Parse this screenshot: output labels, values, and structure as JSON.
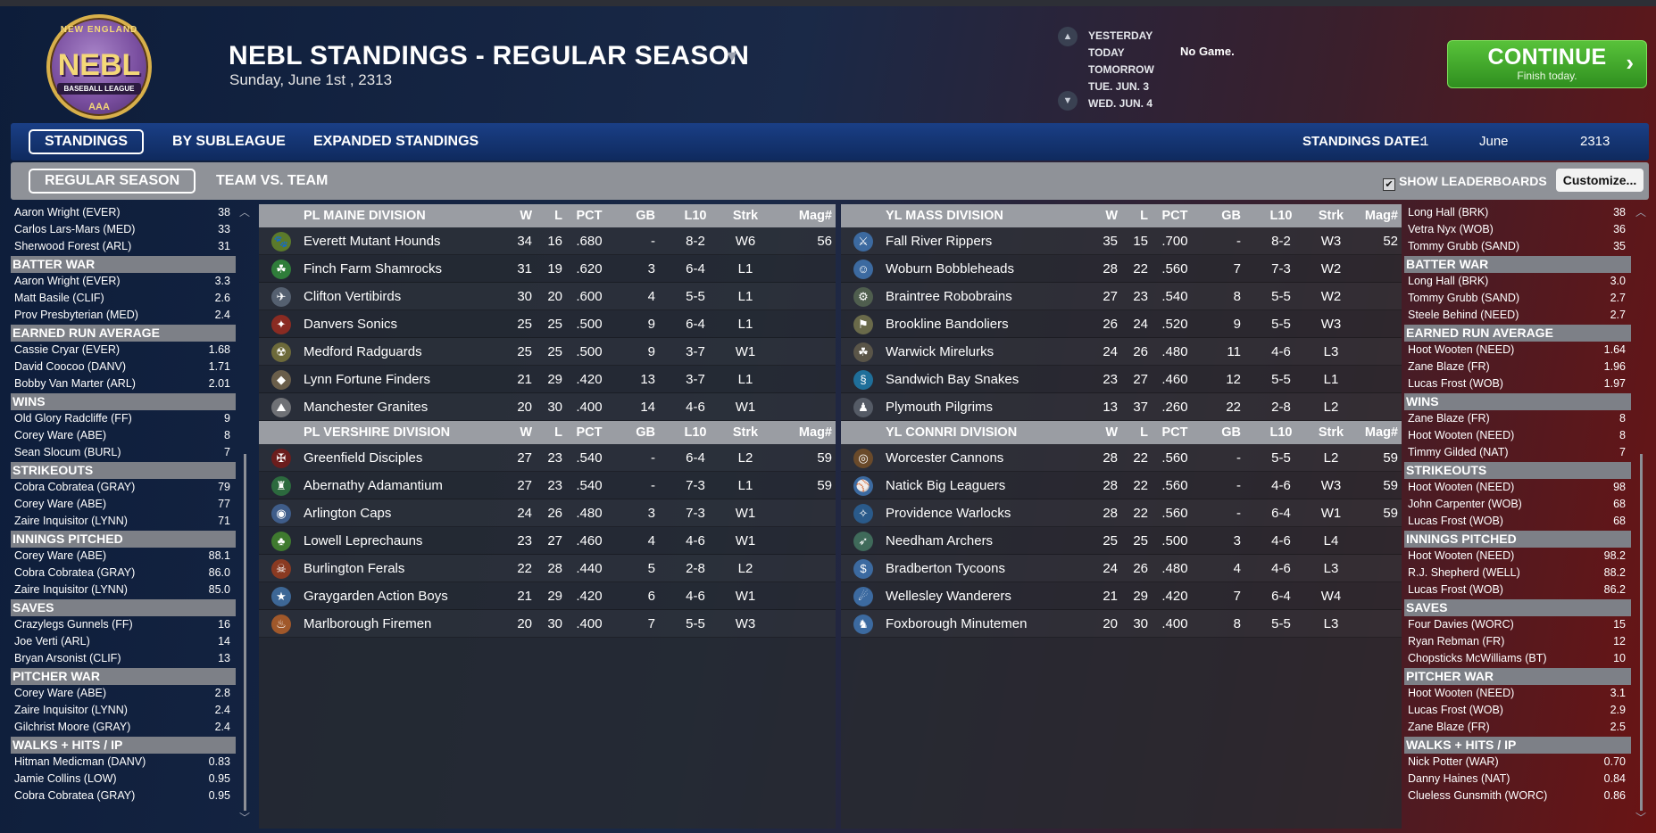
{
  "header": {
    "logo": {
      "top": "NEW ENGLAND",
      "main": "NEBL",
      "sub": "BASEBALL LEAGUE",
      "bottom": "AAA"
    },
    "title": "NEBL STANDINGS - REGULAR SEASON",
    "date": "Sunday, June 1st , 2313",
    "days": [
      "YESTERDAY",
      "TODAY",
      "TOMORROW",
      "TUE. JUN. 3",
      "WED. JUN. 4"
    ],
    "game_status": "No Game.",
    "continue_label": "CONTINUE",
    "continue_sub": "Finish today."
  },
  "tabs": {
    "items": [
      "STANDINGS",
      "BY SUBLEAGUE",
      "EXPANDED STANDINGS"
    ],
    "standings_date_label": "STANDINGS DATE:",
    "standings_day": "1",
    "standings_month": "June",
    "standings_year": "2313"
  },
  "subtabs": {
    "items": [
      "REGULAR SEASON",
      "TEAM VS. TEAM"
    ],
    "show_leaderboards": "SHOW LEADERBOARDS",
    "show_leaderboards_checked": true,
    "customize": "Customize..."
  },
  "left_leaders": [
    {
      "rows": [
        [
          "Aaron Wright (EVER)",
          "38"
        ],
        [
          "Carlos Lars-Mars (MED)",
          "33"
        ],
        [
          "Sherwood Forest (ARL)",
          "31"
        ]
      ]
    },
    {
      "title": "BATTER WAR",
      "rows": [
        [
          "Aaron Wright (EVER)",
          "3.3"
        ],
        [
          "Matt Basile (CLIF)",
          "2.6"
        ],
        [
          "Prov Presbyterian (MED)",
          "2.4"
        ]
      ]
    },
    {
      "title": "EARNED RUN AVERAGE",
      "rows": [
        [
          "Cassie Cryar (EVER)",
          "1.68"
        ],
        [
          "David Coocoo (DANV)",
          "1.71"
        ],
        [
          "Bobby Van Marter (ARL)",
          "2.01"
        ]
      ]
    },
    {
      "title": "WINS",
      "rows": [
        [
          "Old Glory Radcliffe (FF)",
          "9"
        ],
        [
          "Corey Ware (ABE)",
          "8"
        ],
        [
          "Sean Slocum (BURL)",
          "7"
        ]
      ]
    },
    {
      "title": "STRIKEOUTS",
      "rows": [
        [
          "Cobra Cobratea (GRAY)",
          "79"
        ],
        [
          "Corey Ware (ABE)",
          "77"
        ],
        [
          "Zaire Inquisitor (LYNN)",
          "71"
        ]
      ]
    },
    {
      "title": "INNINGS PITCHED",
      "rows": [
        [
          "Corey Ware (ABE)",
          "88.1"
        ],
        [
          "Cobra Cobratea (GRAY)",
          "86.0"
        ],
        [
          "Zaire Inquisitor (LYNN)",
          "85.0"
        ]
      ]
    },
    {
      "title": "SAVES",
      "rows": [
        [
          "Crazylegs Gunnels (FF)",
          "16"
        ],
        [
          "Joe Verti (ARL)",
          "14"
        ],
        [
          "Bryan Arsonist (CLIF)",
          "13"
        ]
      ]
    },
    {
      "title": "PITCHER WAR",
      "rows": [
        [
          "Corey Ware (ABE)",
          "2.8"
        ],
        [
          "Zaire Inquisitor (LYNN)",
          "2.4"
        ],
        [
          "Gilchrist Moore (GRAY)",
          "2.4"
        ]
      ]
    },
    {
      "title": "WALKS + HITS / IP",
      "rows": [
        [
          "Hitman Medicman (DANV)",
          "0.83"
        ],
        [
          "Jamie Collins (LOW)",
          "0.95"
        ],
        [
          "Cobra Cobratea (GRAY)",
          "0.95"
        ]
      ]
    }
  ],
  "right_leaders": [
    {
      "rows": [
        [
          "Long Hall (BRK)",
          "38"
        ],
        [
          "Vetra Nyx (WOB)",
          "36"
        ],
        [
          "Tommy Grubb (SAND)",
          "35"
        ]
      ]
    },
    {
      "title": "BATTER WAR",
      "rows": [
        [
          "Long Hall (BRK)",
          "3.0"
        ],
        [
          "Tommy Grubb (SAND)",
          "2.7"
        ],
        [
          "Steele Behind (NEED)",
          "2.7"
        ]
      ]
    },
    {
      "title": "EARNED RUN AVERAGE",
      "rows": [
        [
          "Hoot Wooten (NEED)",
          "1.64"
        ],
        [
          "Zane Blaze (FR)",
          "1.96"
        ],
        [
          "Lucas Frost (WOB)",
          "1.97"
        ]
      ]
    },
    {
      "title": "WINS",
      "rows": [
        [
          "Zane Blaze (FR)",
          "8"
        ],
        [
          "Hoot Wooten (NEED)",
          "8"
        ],
        [
          "Timmy Gilded (NAT)",
          "7"
        ]
      ]
    },
    {
      "title": "STRIKEOUTS",
      "rows": [
        [
          "Hoot Wooten (NEED)",
          "98"
        ],
        [
          "John Carpenter (WOB)",
          "68"
        ],
        [
          "Lucas Frost (WOB)",
          "68"
        ]
      ]
    },
    {
      "title": "INNINGS PITCHED",
      "rows": [
        [
          "Hoot Wooten (NEED)",
          "98.2"
        ],
        [
          "R.J. Shepherd (WELL)",
          "88.2"
        ],
        [
          "Lucas Frost (WOB)",
          "86.2"
        ]
      ]
    },
    {
      "title": "SAVES",
      "rows": [
        [
          "Four Davies (WORC)",
          "15"
        ],
        [
          "Ryan Rebman (FR)",
          "12"
        ],
        [
          "Chopsticks McWilliams (BT)",
          "10"
        ]
      ]
    },
    {
      "title": "PITCHER WAR",
      "rows": [
        [
          "Hoot Wooten (NEED)",
          "3.1"
        ],
        [
          "Lucas Frost (WOB)",
          "2.9"
        ],
        [
          "Zane Blaze (FR)",
          "2.5"
        ]
      ]
    },
    {
      "title": "WALKS + HITS / IP",
      "rows": [
        [
          "Nick Potter (WAR)",
          "0.70"
        ],
        [
          "Danny Haines (NAT)",
          "0.84"
        ],
        [
          "Clueless Gunsmith (WORC)",
          "0.86"
        ]
      ]
    }
  ],
  "columns": [
    "W",
    "L",
    "PCT",
    "GB",
    "L10",
    "Strk",
    "Mag#"
  ],
  "divisions_left": [
    {
      "name": "PL MAINE DIVISION",
      "teams": [
        {
          "name": "Everett Mutant Hounds",
          "icon": "hound-icon",
          "color": "#5b7a2b",
          "glyph": "🐾",
          "w": "34",
          "l": "16",
          "pct": ".680",
          "gb": "-",
          "l10": "8-2",
          "strk": "W6",
          "mag": "56"
        },
        {
          "name": "Finch Farm Shamrocks",
          "icon": "shamrock-icon",
          "color": "#2f7d3a",
          "glyph": "☘",
          "w": "31",
          "l": "19",
          "pct": ".620",
          "gb": "3",
          "l10": "6-4",
          "strk": "L1",
          "mag": ""
        },
        {
          "name": "Clifton Vertibirds",
          "icon": "vertibird-icon",
          "color": "#556070",
          "glyph": "✈",
          "w": "30",
          "l": "20",
          "pct": ".600",
          "gb": "4",
          "l10": "5-5",
          "strk": "L1",
          "mag": ""
        },
        {
          "name": "Danvers Sonics",
          "icon": "sonic-icon",
          "color": "#8a2b22",
          "glyph": "✦",
          "w": "25",
          "l": "25",
          "pct": ".500",
          "gb": "9",
          "l10": "6-4",
          "strk": "L1",
          "mag": ""
        },
        {
          "name": "Medford Radguards",
          "icon": "radguard-icon",
          "color": "#6d6a3a",
          "glyph": "☢",
          "w": "25",
          "l": "25",
          "pct": ".500",
          "gb": "9",
          "l10": "3-7",
          "strk": "W1",
          "mag": ""
        },
        {
          "name": "Lynn Fortune Finders",
          "icon": "fortune-icon",
          "color": "#6a5e4a",
          "glyph": "◆",
          "w": "21",
          "l": "29",
          "pct": ".420",
          "gb": "13",
          "l10": "3-7",
          "strk": "L1",
          "mag": ""
        },
        {
          "name": "Manchester Granites",
          "icon": "granite-icon",
          "color": "#6f7176",
          "glyph": "⛰",
          "w": "20",
          "l": "30",
          "pct": ".400",
          "gb": "14",
          "l10": "4-6",
          "strk": "W1",
          "mag": ""
        }
      ]
    },
    {
      "name": "PL VERSHIRE DIVISION",
      "teams": [
        {
          "name": "Greenfield Disciples",
          "icon": "disciple-icon",
          "color": "#6b1d1d",
          "glyph": "✠",
          "w": "27",
          "l": "23",
          "pct": ".540",
          "gb": "-",
          "l10": "6-4",
          "strk": "L2",
          "mag": "59"
        },
        {
          "name": "Abernathy Adamantium",
          "icon": "adamantium-icon",
          "color": "#2c6a3e",
          "glyph": "♜",
          "w": "27",
          "l": "23",
          "pct": ".540",
          "gb": "-",
          "l10": "7-3",
          "strk": "L1",
          "mag": "59"
        },
        {
          "name": "Arlington Caps",
          "icon": "caps-icon",
          "color": "#3f5d8a",
          "glyph": "◉",
          "w": "24",
          "l": "26",
          "pct": ".480",
          "gb": "3",
          "l10": "7-3",
          "strk": "W1",
          "mag": ""
        },
        {
          "name": "Lowell Leprechauns",
          "icon": "leprechaun-icon",
          "color": "#3f7a2f",
          "glyph": "♣",
          "w": "23",
          "l": "27",
          "pct": ".460",
          "gb": "4",
          "l10": "4-6",
          "strk": "W1",
          "mag": ""
        },
        {
          "name": "Burlington Ferals",
          "icon": "feral-icon",
          "color": "#8a3a22",
          "glyph": "☠",
          "w": "22",
          "l": "28",
          "pct": ".440",
          "gb": "5",
          "l10": "2-8",
          "strk": "L2",
          "mag": ""
        },
        {
          "name": "Graygarden Action Boys",
          "icon": "actionboy-icon",
          "color": "#3d6796",
          "glyph": "★",
          "w": "21",
          "l": "29",
          "pct": ".420",
          "gb": "6",
          "l10": "4-6",
          "strk": "W1",
          "mag": ""
        },
        {
          "name": "Marlborough Firemen",
          "icon": "firemen-icon",
          "color": "#a0582a",
          "glyph": "♨",
          "w": "20",
          "l": "30",
          "pct": ".400",
          "gb": "7",
          "l10": "5-5",
          "strk": "W3",
          "mag": ""
        }
      ]
    }
  ],
  "divisions_right": [
    {
      "name": "YL MASS DIVISION",
      "teams": [
        {
          "name": "Fall River Rippers",
          "icon": "ripper-icon",
          "color": "#3c6aa0",
          "glyph": "⚔",
          "w": "35",
          "l": "15",
          "pct": ".700",
          "gb": "-",
          "l10": "8-2",
          "strk": "W3",
          "mag": "52"
        },
        {
          "name": "Woburn Bobbleheads",
          "icon": "bobblehead-icon",
          "color": "#3c6aa0",
          "glyph": "☺",
          "w": "28",
          "l": "22",
          "pct": ".560",
          "gb": "7",
          "l10": "7-3",
          "strk": "W2",
          "mag": ""
        },
        {
          "name": "Braintree Robobrains",
          "icon": "robobrain-icon",
          "color": "#4f5e4e",
          "glyph": "⚙",
          "w": "27",
          "l": "23",
          "pct": ".540",
          "gb": "8",
          "l10": "5-5",
          "strk": "W2",
          "mag": ""
        },
        {
          "name": "Brookline Bandoliers",
          "icon": "bandolier-icon",
          "color": "#6a6a4a",
          "glyph": "⚑",
          "w": "26",
          "l": "24",
          "pct": ".520",
          "gb": "9",
          "l10": "5-5",
          "strk": "W3",
          "mag": ""
        },
        {
          "name": "Warwick Mirelurks",
          "icon": "mirelurk-icon",
          "color": "#5a5548",
          "glyph": "☘",
          "w": "24",
          "l": "26",
          "pct": ".480",
          "gb": "11",
          "l10": "4-6",
          "strk": "L3",
          "mag": ""
        },
        {
          "name": "Sandwich Bay Snakes",
          "icon": "snake-icon",
          "color": "#1f6f9a",
          "glyph": "§",
          "w": "23",
          "l": "27",
          "pct": ".460",
          "gb": "12",
          "l10": "5-5",
          "strk": "L1",
          "mag": ""
        },
        {
          "name": "Plymouth Pilgrims",
          "icon": "pilgrim-icon",
          "color": "#555b66",
          "glyph": "♟",
          "w": "13",
          "l": "37",
          "pct": ".260",
          "gb": "22",
          "l10": "2-8",
          "strk": "L2",
          "mag": ""
        }
      ]
    },
    {
      "name": "YL CONNRI DIVISION",
      "teams": [
        {
          "name": "Worcester Cannons",
          "icon": "cannon-icon",
          "color": "#6a4a2a",
          "glyph": "◎",
          "w": "28",
          "l": "22",
          "pct": ".560",
          "gb": "-",
          "l10": "5-5",
          "strk": "L2",
          "mag": "59"
        },
        {
          "name": "Natick Big Leaguers",
          "icon": "bigleaguer-icon",
          "color": "#3c6aa0",
          "glyph": "⚾",
          "w": "28",
          "l": "22",
          "pct": ".560",
          "gb": "-",
          "l10": "4-6",
          "strk": "W3",
          "mag": "59"
        },
        {
          "name": "Providence Warlocks",
          "icon": "warlock-icon",
          "color": "#2a5a8a",
          "glyph": "✧",
          "w": "28",
          "l": "22",
          "pct": ".560",
          "gb": "-",
          "l10": "6-4",
          "strk": "W1",
          "mag": "59"
        },
        {
          "name": "Needham Archers",
          "icon": "archer-icon",
          "color": "#3f6a5a",
          "glyph": "➶",
          "w": "25",
          "l": "25",
          "pct": ".500",
          "gb": "3",
          "l10": "4-6",
          "strk": "L4",
          "mag": ""
        },
        {
          "name": "Bradberton Tycoons",
          "icon": "tycoon-icon",
          "color": "#3c6aa0",
          "glyph": "$",
          "w": "24",
          "l": "26",
          "pct": ".480",
          "gb": "4",
          "l10": "4-6",
          "strk": "L3",
          "mag": ""
        },
        {
          "name": "Wellesley Wanderers",
          "icon": "wanderer-icon",
          "color": "#3c6aa0",
          "glyph": "☄",
          "w": "21",
          "l": "29",
          "pct": ".420",
          "gb": "7",
          "l10": "6-4",
          "strk": "W4",
          "mag": ""
        },
        {
          "name": "Foxborough Minutemen",
          "icon": "minuteman-icon",
          "color": "#3c6aa0",
          "glyph": "♞",
          "w": "20",
          "l": "30",
          "pct": ".400",
          "gb": "8",
          "l10": "5-5",
          "strk": "L3",
          "mag": ""
        }
      ]
    }
  ]
}
